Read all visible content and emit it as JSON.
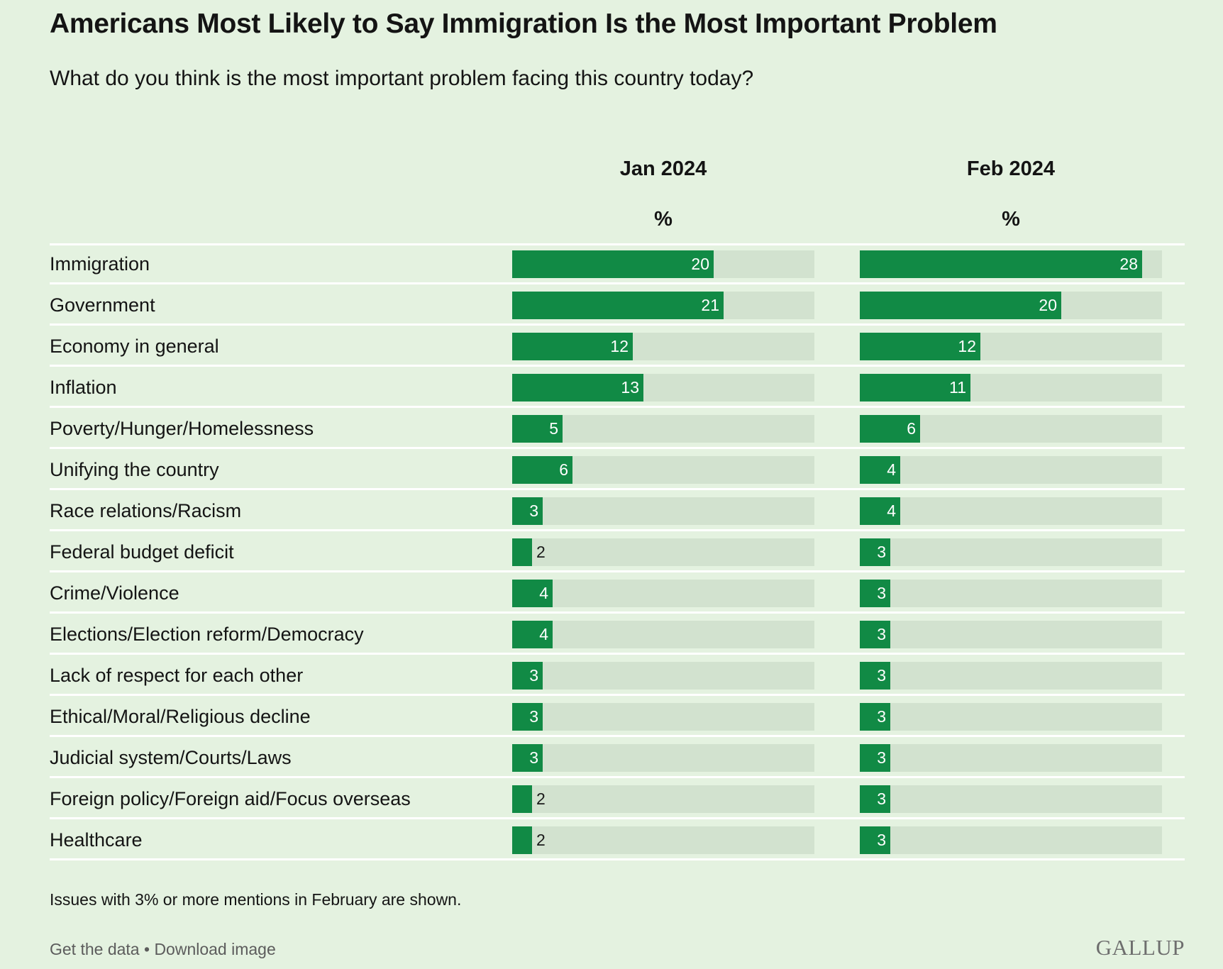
{
  "title": "Americans Most Likely to Say Immigration Is the Most Important Problem",
  "subtitle": "What do you think is the most important problem facing this country today?",
  "note": "Issues with 3% or more mentions in February are shown.",
  "footer": {
    "get_data": "Get the data",
    "separator": "•",
    "download": "Download image"
  },
  "logo": "GALLUP",
  "colors": {
    "background": "#e4f2e0",
    "bar": "#118a45",
    "track": "#d2e2cf"
  },
  "chart_data": {
    "type": "bar",
    "orientation": "horizontal",
    "unit": "%",
    "xlim": [
      0,
      30
    ],
    "categories": [
      "Immigration",
      "Government",
      "Economy in general",
      "Inflation",
      "Poverty/Hunger/Homelessness",
      "Unifying the country",
      "Race relations/Racism",
      "Federal budget deficit",
      "Crime/Violence",
      "Elections/Election reform/Democracy",
      "Lack of respect for each other",
      "Ethical/Moral/Religious decline",
      "Judicial system/Courts/Laws",
      "Foreign policy/Foreign aid/Focus overseas",
      "Healthcare"
    ],
    "series": [
      {
        "name": "Jan 2024",
        "values": [
          20,
          21,
          12,
          13,
          5,
          6,
          3,
          2,
          4,
          4,
          3,
          3,
          3,
          2,
          2
        ]
      },
      {
        "name": "Feb 2024",
        "values": [
          28,
          20,
          12,
          11,
          6,
          4,
          4,
          3,
          3,
          3,
          3,
          3,
          3,
          3,
          3
        ]
      }
    ]
  }
}
